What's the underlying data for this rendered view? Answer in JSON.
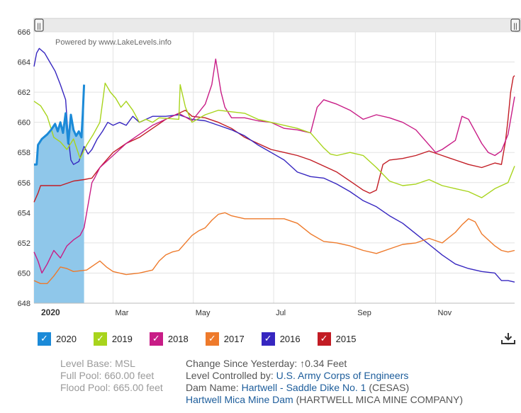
{
  "chart_data": {
    "type": "line",
    "watermark": "Powered by www.LakeLevels.info",
    "ylim": [
      648,
      666
    ],
    "yticks": [
      648,
      650,
      652,
      654,
      656,
      658,
      660,
      662,
      664,
      666
    ],
    "xlim": [
      0,
      365
    ],
    "xticks": [
      {
        "label": "2020",
        "day": 0
      },
      {
        "label": "Mar",
        "day": 60
      },
      {
        "label": "May",
        "day": 121
      },
      {
        "label": "Jul",
        "day": 182
      },
      {
        "label": "Sep",
        "day": 244
      },
      {
        "label": "Nov",
        "day": 305
      }
    ],
    "series": [
      {
        "name": "2020",
        "color": "#1b8ad8",
        "fill": "#8fc7ea",
        "points": [
          [
            0,
            657.2
          ],
          [
            2,
            657.2
          ],
          [
            3,
            658.5
          ],
          [
            6,
            658.9
          ],
          [
            10,
            659.2
          ],
          [
            13,
            659.5
          ],
          [
            16,
            659.9
          ],
          [
            18,
            659.4
          ],
          [
            20,
            660.0
          ],
          [
            22,
            659.3
          ],
          [
            24,
            660.6
          ],
          [
            26,
            658.6
          ],
          [
            28,
            660.5
          ],
          [
            30,
            659.5
          ],
          [
            32,
            659.1
          ],
          [
            34,
            659.4
          ],
          [
            36,
            659.0
          ],
          [
            37,
            660.5
          ],
          [
            38,
            662.5
          ]
        ]
      },
      {
        "name": "2019",
        "color": "#a8d41c",
        "points": [
          [
            0,
            661.4
          ],
          [
            5,
            661.1
          ],
          [
            10,
            660.4
          ],
          [
            15,
            659.0
          ],
          [
            20,
            658.7
          ],
          [
            25,
            658.2
          ],
          [
            30,
            658.9
          ],
          [
            35,
            657.6
          ],
          [
            40,
            658.5
          ],
          [
            45,
            659.2
          ],
          [
            50,
            660.0
          ],
          [
            54,
            662.6
          ],
          [
            58,
            662.0
          ],
          [
            62,
            661.6
          ],
          [
            66,
            661.0
          ],
          [
            70,
            661.4
          ],
          [
            75,
            660.8
          ],
          [
            80,
            660.0
          ],
          [
            85,
            660.2
          ],
          [
            90,
            660.0
          ],
          [
            95,
            660.3
          ],
          [
            110,
            660.2
          ],
          [
            111,
            662.5
          ],
          [
            115,
            661.0
          ],
          [
            120,
            660.0
          ],
          [
            130,
            660.5
          ],
          [
            140,
            660.8
          ],
          [
            150,
            660.7
          ],
          [
            160,
            660.6
          ],
          [
            170,
            660.2
          ],
          [
            180,
            660.0
          ],
          [
            190,
            659.8
          ],
          [
            200,
            659.6
          ],
          [
            210,
            659.3
          ],
          [
            220,
            658.3
          ],
          [
            225,
            657.9
          ],
          [
            230,
            657.8
          ],
          [
            240,
            658.0
          ],
          [
            250,
            657.8
          ],
          [
            260,
            657.0
          ],
          [
            270,
            656.1
          ],
          [
            280,
            655.8
          ],
          [
            290,
            655.9
          ],
          [
            300,
            656.2
          ],
          [
            310,
            655.8
          ],
          [
            320,
            655.6
          ],
          [
            330,
            655.4
          ],
          [
            340,
            655.0
          ],
          [
            350,
            655.6
          ],
          [
            360,
            656.0
          ],
          [
            365,
            657.1
          ]
        ]
      },
      {
        "name": "2018",
        "color": "#c81c86",
        "points": [
          [
            0,
            651.4
          ],
          [
            3,
            650.8
          ],
          [
            6,
            650.0
          ],
          [
            10,
            650.6
          ],
          [
            15,
            651.5
          ],
          [
            20,
            651.0
          ],
          [
            25,
            651.8
          ],
          [
            30,
            652.2
          ],
          [
            35,
            652.5
          ],
          [
            38,
            653.0
          ],
          [
            40,
            654.0
          ],
          [
            42,
            655.0
          ],
          [
            44,
            656.0
          ],
          [
            46,
            656.3
          ],
          [
            50,
            657.0
          ],
          [
            60,
            657.8
          ],
          [
            70,
            658.6
          ],
          [
            80,
            659.2
          ],
          [
            90,
            659.8
          ],
          [
            100,
            660.2
          ],
          [
            110,
            660.6
          ],
          [
            120,
            660.1
          ],
          [
            130,
            661.2
          ],
          [
            135,
            662.5
          ],
          [
            138,
            664.2
          ],
          [
            142,
            662.0
          ],
          [
            145,
            661.0
          ],
          [
            150,
            660.3
          ],
          [
            160,
            660.3
          ],
          [
            170,
            660.1
          ],
          [
            180,
            660.0
          ],
          [
            190,
            659.6
          ],
          [
            200,
            659.5
          ],
          [
            210,
            659.3
          ],
          [
            215,
            661.0
          ],
          [
            220,
            661.5
          ],
          [
            230,
            661.2
          ],
          [
            240,
            660.8
          ],
          [
            250,
            660.2
          ],
          [
            260,
            660.5
          ],
          [
            270,
            660.3
          ],
          [
            280,
            660.0
          ],
          [
            290,
            659.5
          ],
          [
            300,
            658.5
          ],
          [
            305,
            658.0
          ],
          [
            310,
            658.2
          ],
          [
            320,
            658.8
          ],
          [
            325,
            660.4
          ],
          [
            330,
            660.2
          ],
          [
            335,
            659.4
          ],
          [
            340,
            658.6
          ],
          [
            345,
            658.0
          ],
          [
            350,
            657.8
          ],
          [
            355,
            658.1
          ],
          [
            360,
            659.2
          ],
          [
            365,
            661.7
          ]
        ]
      },
      {
        "name": "2017",
        "color": "#ee7a2b",
        "points": [
          [
            0,
            649.5
          ],
          [
            5,
            649.3
          ],
          [
            10,
            649.3
          ],
          [
            15,
            649.8
          ],
          [
            20,
            650.4
          ],
          [
            25,
            650.3
          ],
          [
            30,
            650.1
          ],
          [
            40,
            650.2
          ],
          [
            45,
            650.5
          ],
          [
            50,
            650.8
          ],
          [
            55,
            650.4
          ],
          [
            60,
            650.1
          ],
          [
            65,
            650.0
          ],
          [
            70,
            649.9
          ],
          [
            80,
            650.0
          ],
          [
            90,
            650.2
          ],
          [
            95,
            650.8
          ],
          [
            100,
            651.2
          ],
          [
            105,
            651.4
          ],
          [
            110,
            651.5
          ],
          [
            115,
            652.0
          ],
          [
            120,
            652.5
          ],
          [
            125,
            652.8
          ],
          [
            130,
            653.0
          ],
          [
            135,
            653.5
          ],
          [
            140,
            653.9
          ],
          [
            145,
            654.0
          ],
          [
            150,
            653.8
          ],
          [
            160,
            653.6
          ],
          [
            170,
            653.6
          ],
          [
            180,
            653.6
          ],
          [
            190,
            653.6
          ],
          [
            200,
            653.3
          ],
          [
            210,
            652.6
          ],
          [
            220,
            652.1
          ],
          [
            230,
            652.0
          ],
          [
            240,
            651.8
          ],
          [
            250,
            651.5
          ],
          [
            260,
            651.3
          ],
          [
            270,
            651.6
          ],
          [
            280,
            651.9
          ],
          [
            290,
            652.0
          ],
          [
            300,
            652.3
          ],
          [
            310,
            652.0
          ],
          [
            320,
            652.7
          ],
          [
            325,
            653.2
          ],
          [
            330,
            653.6
          ],
          [
            335,
            653.4
          ],
          [
            340,
            652.6
          ],
          [
            345,
            652.2
          ],
          [
            350,
            651.8
          ],
          [
            355,
            651.5
          ],
          [
            360,
            651.4
          ],
          [
            365,
            651.5
          ]
        ]
      },
      {
        "name": "2016",
        "color": "#3626c0",
        "points": [
          [
            0,
            663.7
          ],
          [
            2,
            664.6
          ],
          [
            4,
            664.9
          ],
          [
            8,
            664.6
          ],
          [
            12,
            664.0
          ],
          [
            16,
            663.4
          ],
          [
            20,
            662.5
          ],
          [
            24,
            661.5
          ],
          [
            26,
            659.0
          ],
          [
            28,
            657.5
          ],
          [
            30,
            657.2
          ],
          [
            34,
            657.4
          ],
          [
            36,
            657.9
          ],
          [
            38,
            658.4
          ],
          [
            41,
            657.9
          ],
          [
            44,
            658.2
          ],
          [
            48,
            658.9
          ],
          [
            52,
            659.4
          ],
          [
            56,
            660.0
          ],
          [
            60,
            659.8
          ],
          [
            65,
            660.0
          ],
          [
            70,
            659.8
          ],
          [
            75,
            660.4
          ],
          [
            80,
            660.0
          ],
          [
            90,
            660.4
          ],
          [
            100,
            660.4
          ],
          [
            110,
            660.5
          ],
          [
            120,
            660.2
          ],
          [
            130,
            660.1
          ],
          [
            140,
            659.8
          ],
          [
            150,
            659.5
          ],
          [
            160,
            659.1
          ],
          [
            170,
            658.5
          ],
          [
            180,
            658.0
          ],
          [
            190,
            657.5
          ],
          [
            200,
            656.7
          ],
          [
            210,
            656.4
          ],
          [
            220,
            656.3
          ],
          [
            230,
            655.9
          ],
          [
            240,
            655.4
          ],
          [
            250,
            654.8
          ],
          [
            260,
            654.4
          ],
          [
            270,
            653.8
          ],
          [
            280,
            653.3
          ],
          [
            290,
            652.6
          ],
          [
            300,
            651.9
          ],
          [
            310,
            651.2
          ],
          [
            320,
            650.6
          ],
          [
            330,
            650.3
          ],
          [
            340,
            650.1
          ],
          [
            350,
            650.0
          ],
          [
            355,
            649.5
          ],
          [
            360,
            649.5
          ],
          [
            365,
            649.4
          ]
        ]
      },
      {
        "name": "2015",
        "color": "#c21c24",
        "points": [
          [
            0,
            654.7
          ],
          [
            3,
            655.3
          ],
          [
            5,
            655.8
          ],
          [
            10,
            655.8
          ],
          [
            20,
            655.8
          ],
          [
            30,
            656.1
          ],
          [
            38,
            656.2
          ],
          [
            44,
            656.3
          ],
          [
            50,
            657.0
          ],
          [
            60,
            658.0
          ],
          [
            70,
            658.6
          ],
          [
            80,
            659.0
          ],
          [
            90,
            659.6
          ],
          [
            100,
            660.2
          ],
          [
            110,
            660.6
          ],
          [
            115,
            660.8
          ],
          [
            120,
            660.4
          ],
          [
            130,
            660.3
          ],
          [
            140,
            660.0
          ],
          [
            150,
            659.6
          ],
          [
            160,
            659.0
          ],
          [
            170,
            658.6
          ],
          [
            180,
            658.2
          ],
          [
            190,
            658.0
          ],
          [
            200,
            657.8
          ],
          [
            210,
            657.5
          ],
          [
            220,
            657.1
          ],
          [
            230,
            656.7
          ],
          [
            240,
            656.1
          ],
          [
            250,
            655.5
          ],
          [
            255,
            655.3
          ],
          [
            260,
            655.5
          ],
          [
            265,
            657.2
          ],
          [
            270,
            657.5
          ],
          [
            280,
            657.6
          ],
          [
            290,
            657.8
          ],
          [
            300,
            658.1
          ],
          [
            310,
            657.8
          ],
          [
            320,
            657.5
          ],
          [
            330,
            657.2
          ],
          [
            340,
            657.0
          ],
          [
            350,
            657.3
          ],
          [
            355,
            657.2
          ],
          [
            358,
            658.7
          ],
          [
            360,
            660.2
          ],
          [
            362,
            662.0
          ],
          [
            364,
            663.0
          ],
          [
            365,
            663.1
          ]
        ]
      }
    ]
  },
  "legend": [
    {
      "label": "2020",
      "color": "#1b8ad8"
    },
    {
      "label": "2019",
      "color": "#a8d41c"
    },
    {
      "label": "2018",
      "color": "#c81c86"
    },
    {
      "label": "2017",
      "color": "#ee7a2b"
    },
    {
      "label": "2016",
      "color": "#3626c0"
    },
    {
      "label": "2015",
      "color": "#c21c24"
    }
  ],
  "legend_check": "✓",
  "handle_glyph": "||",
  "info": {
    "level_base_label": "Level Base:",
    "level_base_value": "MSL",
    "full_pool_label": "Full Pool:",
    "full_pool_value": "660.00 feet",
    "flood_pool_label": "Flood Pool:",
    "flood_pool_value": "665.00 feet",
    "change_label": "Change Since Yesterday:",
    "change_arrow": "↑",
    "change_value": "0.34 Feet",
    "controlled_label": "Level Controlled by:",
    "controlled_value": "U.S. Army Corps of Engineers",
    "dam_label": "Dam Name:",
    "dam_value": "Hartwell - Saddle Dike No. 1",
    "dam_suffix": "(CESAS)",
    "dam2_value": "Hartwell Mica Mine Dam",
    "dam2_suffix": "(HARTWELL MICA MINE COMPANY)"
  }
}
